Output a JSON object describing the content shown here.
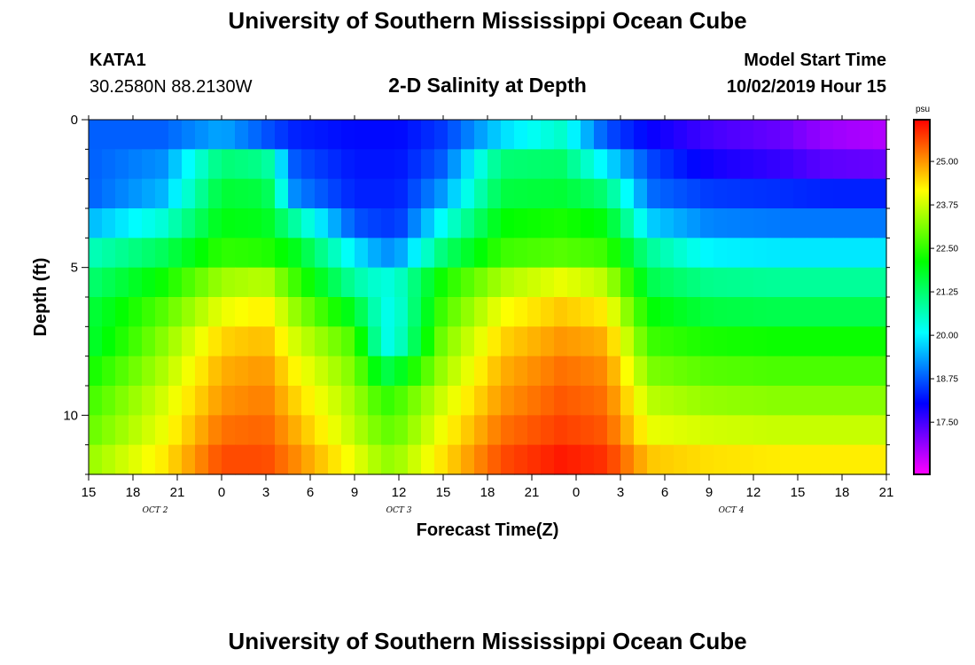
{
  "header": {
    "title": "University of Southern Mississippi Ocean Cube",
    "station": "KATA1",
    "coords": "30.2580N 88.2130W",
    "subtitle": "2-D Salinity at Depth",
    "model_start_label": "Model Start Time",
    "model_start_value": "10/02/2019 Hour 15"
  },
  "footer": {
    "title": "University of Southern Mississippi Ocean Cube"
  },
  "chart_data": {
    "type": "heatmap",
    "title": "2-D Salinity at Depth",
    "xlabel": "Forecast Time(Z)",
    "ylabel": "Depth (ft)",
    "x_tick_labels": [
      "15",
      "18",
      "21",
      "0",
      "3",
      "6",
      "9",
      "12",
      "15",
      "18",
      "21",
      "0",
      "3",
      "6",
      "9",
      "12",
      "15",
      "18",
      "21"
    ],
    "x_range_hours": [
      0,
      54
    ],
    "date_labels": [
      {
        "text": "OCT 2",
        "hour": 4.5
      },
      {
        "text": "OCT 3",
        "hour": 21
      },
      {
        "text": "OCT 4",
        "hour": 43.5
      }
    ],
    "y_tick_labels": [
      "0",
      "5",
      "10"
    ],
    "y_range_ft": [
      0,
      12
    ],
    "colorbar": {
      "unit": "psu",
      "min": 16.0,
      "max": 26.2,
      "ticks": [
        "17.50",
        "18.75",
        "20.00",
        "21.25",
        "22.50",
        "23.75",
        "25.00"
      ]
    },
    "depth_levels_ft": [
      0.5,
      1.5,
      2.5,
      3.5,
      4.5,
      5.5,
      6.5,
      7.5,
      8.5,
      9.5,
      10.5,
      11.5
    ],
    "profile_times_hours": [
      0,
      5,
      9,
      12,
      14,
      18,
      20,
      21,
      24,
      28,
      32,
      35,
      38,
      42,
      47,
      50,
      54
    ],
    "salinity_psu": [
      [
        18.8,
        18.8,
        19.4,
        18.7,
        18.3,
        18.1,
        18.1,
        18.1,
        18.5,
        19.8,
        20.5,
        18.7,
        18.0,
        17.5,
        17.2,
        16.8,
        16.6
      ],
      [
        18.8,
        19.2,
        21.2,
        21.0,
        18.7,
        18.2,
        18.2,
        18.2,
        18.8,
        21.2,
        21.3,
        19.9,
        18.6,
        17.9,
        17.6,
        17.3,
        17.2
      ],
      [
        18.8,
        19.5,
        21.7,
        21.6,
        19.1,
        18.3,
        18.3,
        18.3,
        19.3,
        21.6,
        21.7,
        21.2,
        18.9,
        18.5,
        18.4,
        18.3,
        18.3
      ],
      [
        19.5,
        20.4,
        22.0,
        21.9,
        20.8,
        18.7,
        18.5,
        18.5,
        20.2,
        22.1,
        22.3,
        22.0,
        19.7,
        19.1,
        19.0,
        19.0,
        19.0
      ],
      [
        20.6,
        21.4,
        22.5,
        22.4,
        21.9,
        19.9,
        19.2,
        19.3,
        21.2,
        22.6,
        22.8,
        22.6,
        20.9,
        20.0,
        19.9,
        19.9,
        19.9
      ],
      [
        21.2,
        22.2,
        23.4,
        23.6,
        22.6,
        20.8,
        20.3,
        20.5,
        22.3,
        23.5,
        24.0,
        23.6,
        21.5,
        21.0,
        20.9,
        20.9,
        20.9
      ],
      [
        21.6,
        22.8,
        24.0,
        24.3,
        23.3,
        21.8,
        20.2,
        20.4,
        22.7,
        24.1,
        24.6,
        24.3,
        22.1,
        21.6,
        21.5,
        21.5,
        21.5
      ],
      [
        21.7,
        23.2,
        24.5,
        24.7,
        23.8,
        22.7,
        20.2,
        20.5,
        23.1,
        24.5,
        25.0,
        24.8,
        22.6,
        22.3,
        22.2,
        22.2,
        22.2
      ],
      [
        22.2,
        23.5,
        24.8,
        25.0,
        24.2,
        23.1,
        21.5,
        21.8,
        23.4,
        24.8,
        25.3,
        25.1,
        23.1,
        22.8,
        22.7,
        22.7,
        22.7
      ],
      [
        22.6,
        23.8,
        25.0,
        25.2,
        24.5,
        23.4,
        22.5,
        22.7,
        23.8,
        25.0,
        25.5,
        25.3,
        23.6,
        23.3,
        23.2,
        23.2,
        23.2
      ],
      [
        22.9,
        24.0,
        25.3,
        25.4,
        24.8,
        23.6,
        22.9,
        23.0,
        24.1,
        25.3,
        25.7,
        25.5,
        24.0,
        23.8,
        23.7,
        23.7,
        23.7
      ],
      [
        23.3,
        24.3,
        25.6,
        25.6,
        25.1,
        24.0,
        23.3,
        23.4,
        24.4,
        25.6,
        26.0,
        25.8,
        24.6,
        24.4,
        24.3,
        24.3,
        24.3
      ]
    ]
  }
}
